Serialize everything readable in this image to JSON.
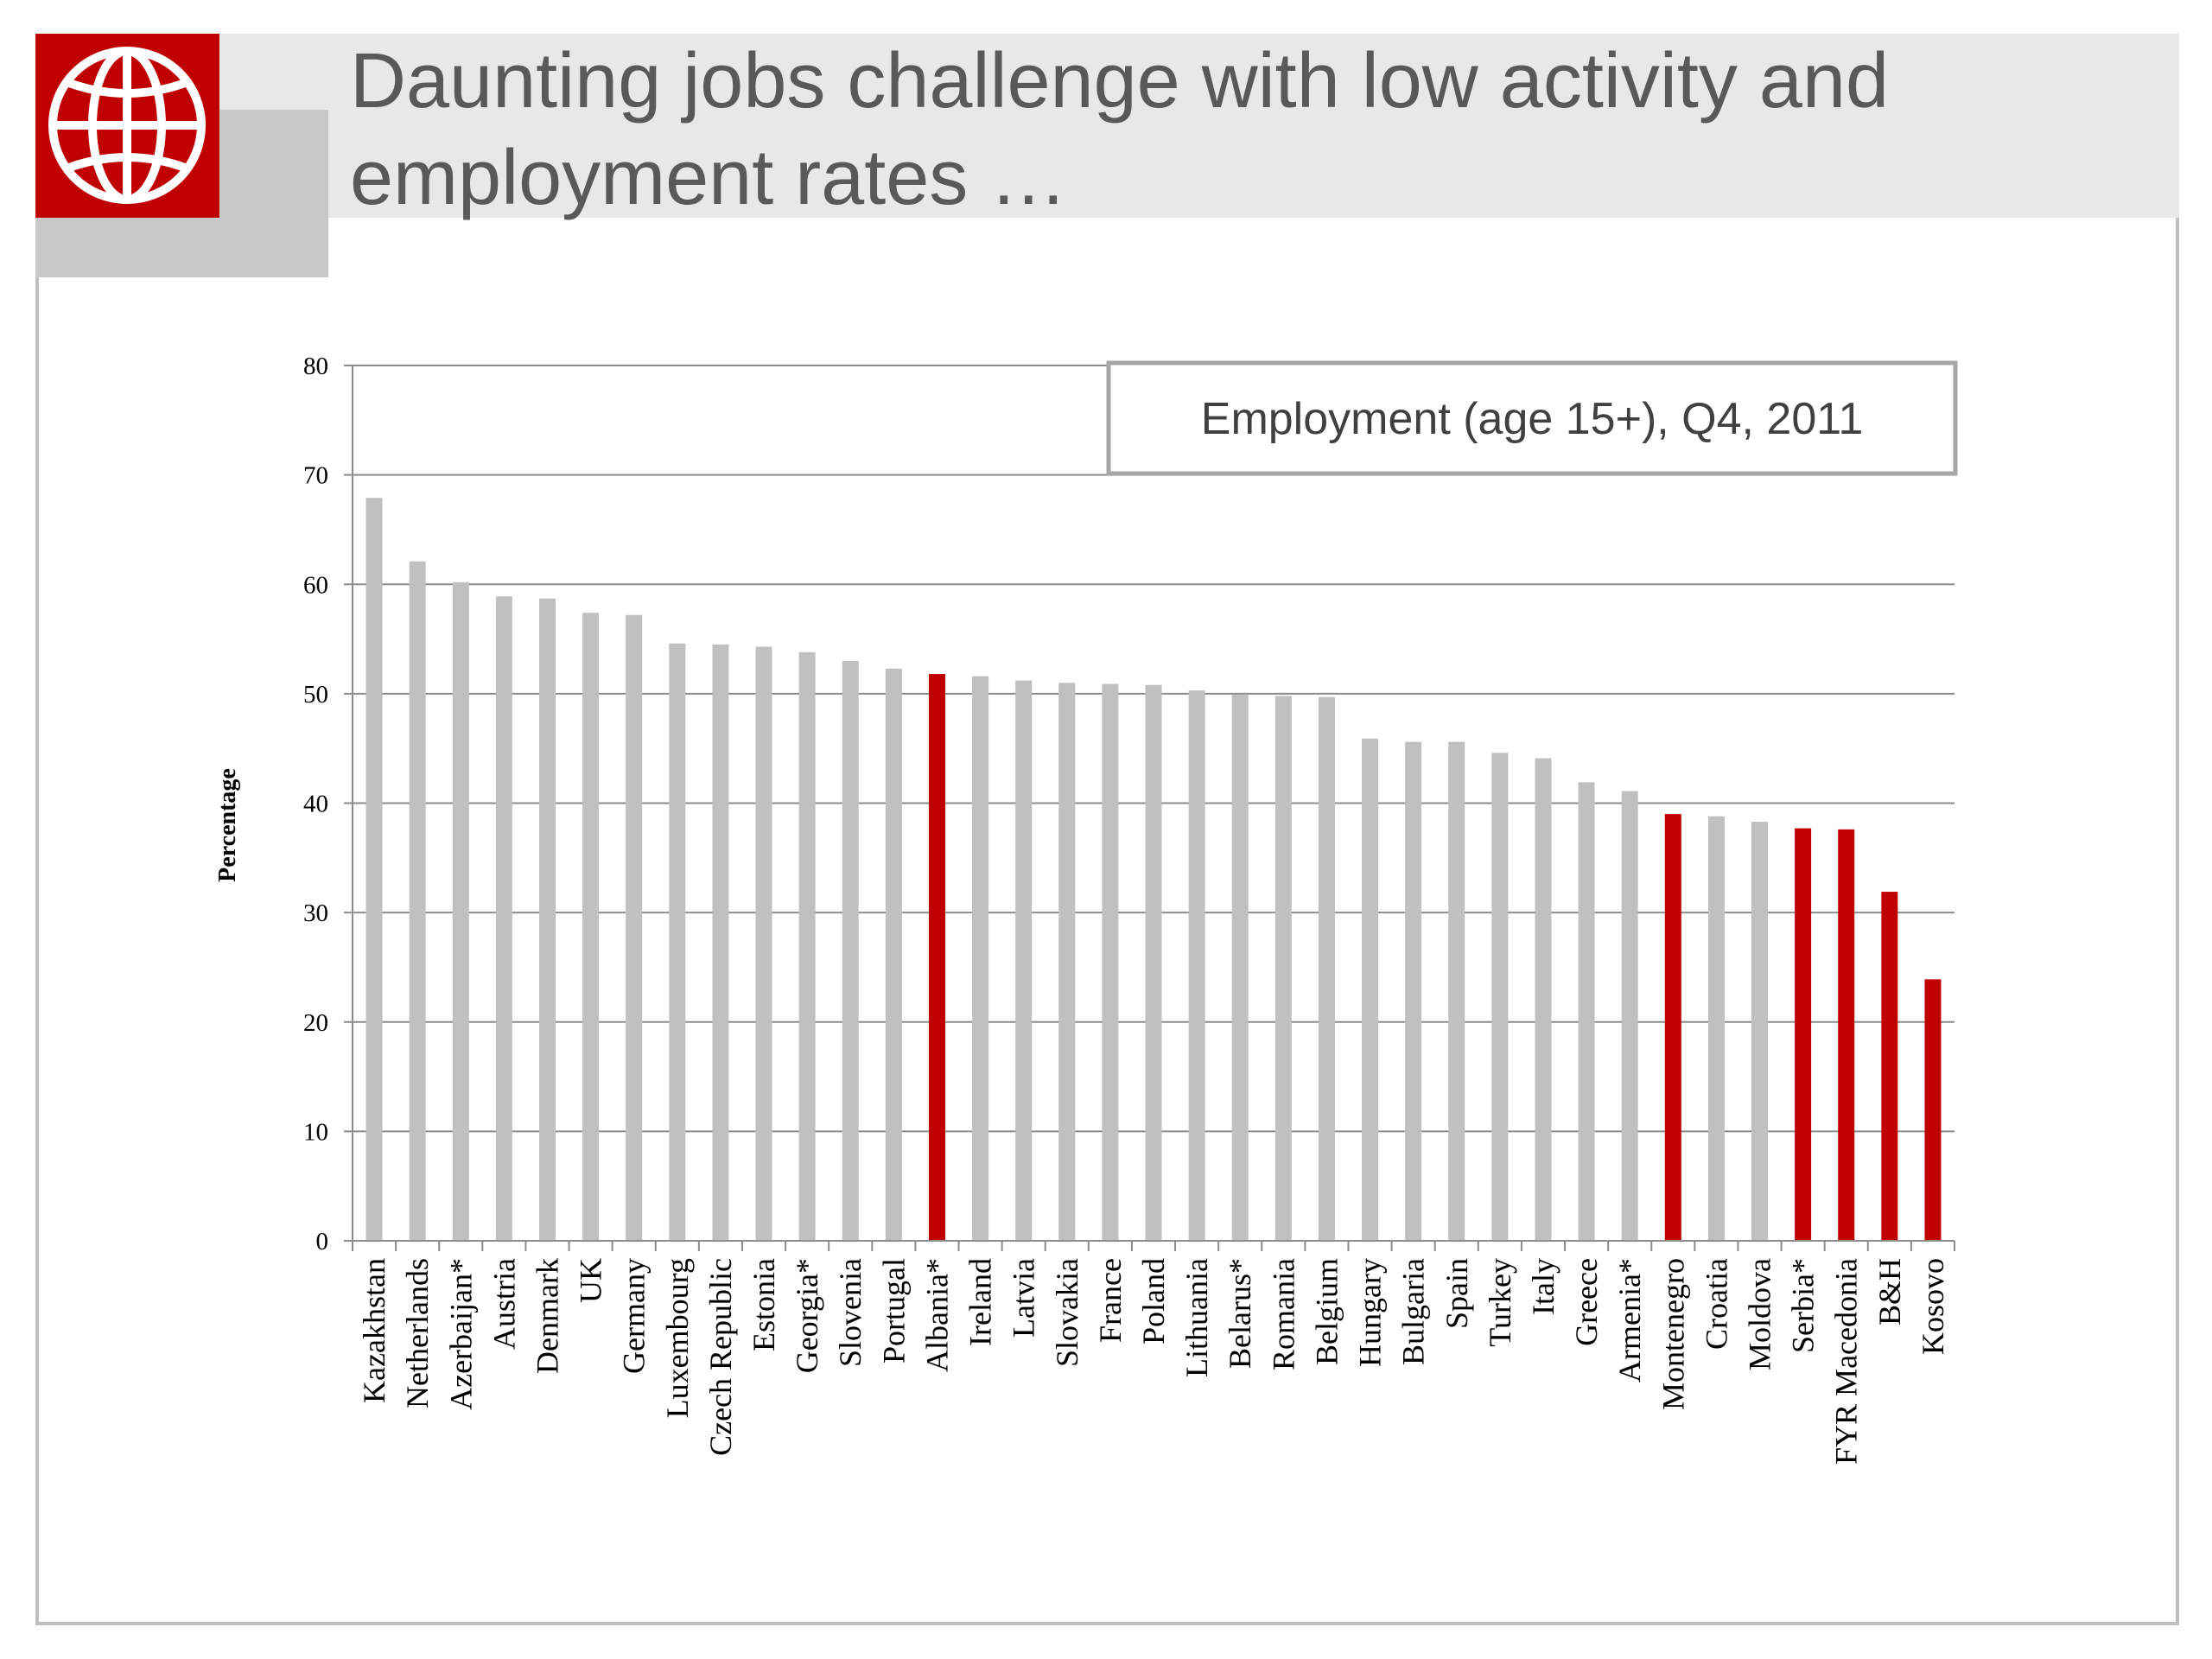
{
  "slide": {
    "title": "Daunting jobs challenge with low activity and employment rates …",
    "logo_icon": "globe-icon",
    "colors": {
      "accent": "#c00000",
      "bar_default": "#c0c0c0",
      "title_band": "#e8e8e8",
      "title_text": "#595959"
    }
  },
  "chart_data": {
    "type": "bar",
    "title": "Employment (age 15+), Q4, 2011",
    "xlabel": "",
    "ylabel": "Percentage",
    "ylim": [
      0,
      80
    ],
    "yticks": [
      0,
      10,
      20,
      30,
      40,
      50,
      60,
      70,
      80
    ],
    "grid": true,
    "legend_placement": "top-right",
    "categories": [
      "Kazakhstan",
      "Netherlands",
      "Azerbaijan*",
      "Austria",
      "Denmark",
      "UK",
      "Germany",
      "Luxembourg",
      "Czech Republic",
      "Estonia",
      "Georgia*",
      "Slovenia",
      "Portugal",
      "Albania*",
      "Ireland",
      "Latvia",
      "Slovakia",
      "France",
      "Poland",
      "Lithuania",
      "Belarus*",
      "Romania",
      "Belgium",
      "Hungary",
      "Bulgaria",
      "Spain",
      "Turkey",
      "Italy",
      "Greece",
      "Armenia*",
      "Montenegro",
      "Croatia",
      "Moldova",
      "Serbia*",
      "FYR Macedonia",
      "B&H",
      "Kosovo"
    ],
    "values": [
      67.9,
      62.1,
      60.2,
      58.9,
      58.7,
      57.4,
      57.2,
      54.6,
      54.5,
      54.3,
      53.8,
      53.0,
      52.3,
      51.8,
      51.6,
      51.2,
      51.0,
      50.9,
      50.8,
      50.3,
      49.9,
      49.8,
      49.7,
      45.9,
      45.6,
      45.6,
      44.6,
      44.1,
      41.9,
      41.1,
      39.0,
      38.8,
      38.3,
      37.7,
      37.6,
      31.9,
      23.9
    ],
    "highlighted": [
      "Albania*",
      "Montenegro",
      "Serbia*",
      "FYR Macedonia",
      "B&H",
      "Kosovo"
    ]
  }
}
